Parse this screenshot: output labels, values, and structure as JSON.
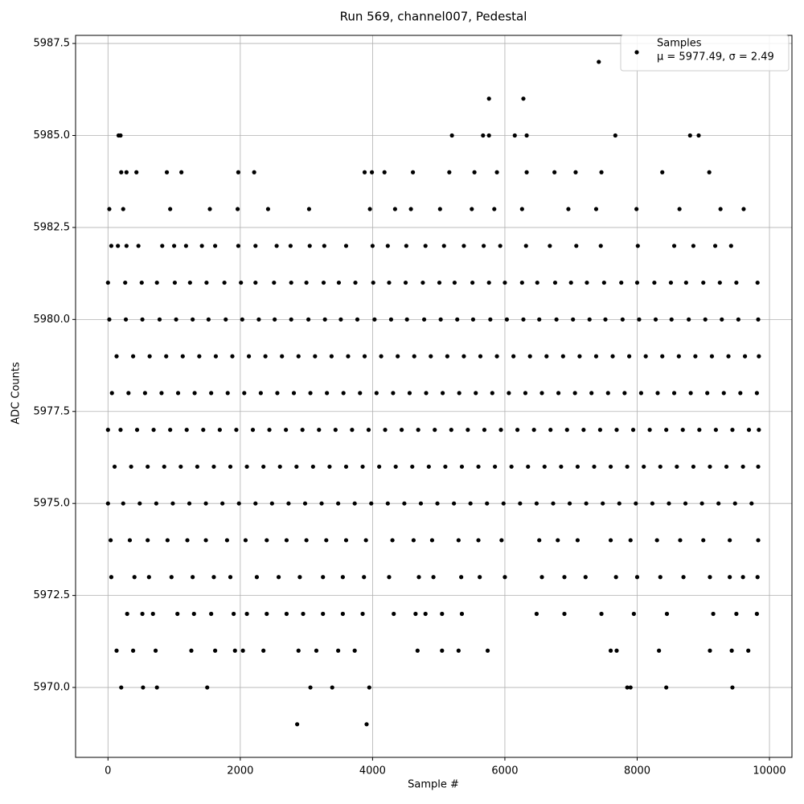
{
  "chart_data": {
    "type": "scatter",
    "title": "Run 569, channel007, Pedestal",
    "x_label": "Sample #",
    "y_label": "ADC Counts",
    "xlim": [
      -490,
      10340
    ],
    "xticks": [
      0,
      2000,
      4000,
      6000,
      8000,
      10000
    ],
    "ylim": [
      5968.1,
      5987.72
    ],
    "yticks": [
      {
        "value": 5970,
        "label": "5970.0"
      },
      {
        "value": 5972.5,
        "label": "5972.5"
      },
      {
        "value": 5975,
        "label": "5975.0"
      },
      {
        "value": 5977.5,
        "label": "5977.5"
      },
      {
        "value": 5980,
        "label": "5980.0"
      },
      {
        "value": 5982.5,
        "label": "5982.5"
      },
      {
        "value": 5985,
        "label": "5985.0"
      },
      {
        "value": 5987.5,
        "label": "5987.5"
      }
    ],
    "grid": true,
    "legend": "upper right",
    "stats_label": "μ = 5977.49, σ = 2.49",
    "series": [
      {
        "name": "Samples",
        "color": "#000000",
        "x": [
          7420,
          5760,
          6280,
          160,
          190,
          5200,
          5670,
          5760,
          6150,
          6330,
          7670,
          8800,
          8930,
          200,
          280,
          430,
          890,
          1110,
          1970,
          2210,
          3880,
          3990,
          4180,
          4610,
          5160,
          5540,
          5880,
          6330,
          6750,
          7070,
          7460,
          8380,
          9090,
          20,
          230,
          940,
          1540,
          1960,
          2420,
          3040,
          3960,
          4340,
          4580,
          5020,
          5500,
          5840,
          6260,
          6960,
          7380,
          7990,
          8640,
          9260,
          9610,
          50,
          150,
          280,
          460,
          820,
          1000,
          1180,
          1420,
          1620,
          1970,
          2230,
          2550,
          2760,
          3050,
          3270,
          3600,
          4000,
          4230,
          4510,
          4800,
          5080,
          5380,
          5680,
          5930,
          6320,
          6680,
          7080,
          7450,
          8010,
          8560,
          8850,
          9180,
          9420,
          0,
          260,
          510,
          740,
          1010,
          1240,
          1490,
          1760,
          2010,
          2230,
          2510,
          2770,
          3000,
          3260,
          3490,
          3740,
          4010,
          4250,
          4500,
          4760,
          5010,
          5240,
          5510,
          5760,
          6000,
          6260,
          6490,
          6760,
          7000,
          7240,
          7500,
          7760,
          8000,
          8260,
          8510,
          8740,
          9000,
          9250,
          9500,
          9820,
          20,
          270,
          520,
          780,
          1030,
          1280,
          1520,
          1780,
          2030,
          2280,
          2520,
          2770,
          3030,
          3280,
          3520,
          3770,
          4030,
          4280,
          4520,
          4780,
          5030,
          5280,
          5520,
          5780,
          6030,
          6280,
          6520,
          6780,
          7030,
          7280,
          7520,
          7780,
          8030,
          8280,
          8520,
          8780,
          9030,
          9280,
          9530,
          9830,
          130,
          380,
          630,
          880,
          1130,
          1380,
          1630,
          1880,
          2130,
          2380,
          2630,
          2880,
          3130,
          3380,
          3630,
          3880,
          4130,
          4380,
          4630,
          4880,
          5130,
          5380,
          5630,
          5880,
          6130,
          6380,
          6630,
          6880,
          7130,
          7380,
          7630,
          7880,
          8130,
          8380,
          8630,
          8880,
          9130,
          9380,
          9630,
          9840,
          60,
          310,
          560,
          810,
          1060,
          1310,
          1560,
          1810,
          2060,
          2310,
          2560,
          2810,
          3060,
          3310,
          3560,
          3810,
          4060,
          4310,
          4560,
          4810,
          5060,
          5310,
          5560,
          5810,
          6060,
          6310,
          6560,
          6810,
          7060,
          7310,
          7560,
          7810,
          8060,
          8310,
          8560,
          8810,
          9060,
          9310,
          9560,
          9810,
          0,
          190,
          440,
          690,
          940,
          1190,
          1440,
          1690,
          1940,
          2190,
          2440,
          2690,
          2940,
          3190,
          3440,
          3690,
          3940,
          4190,
          4440,
          4690,
          4940,
          5190,
          5440,
          5690,
          5940,
          6190,
          6440,
          6690,
          6940,
          7190,
          7440,
          7690,
          7940,
          8190,
          8440,
          8690,
          8940,
          9190,
          9440,
          9690,
          9840,
          100,
          350,
          600,
          850,
          1100,
          1350,
          1600,
          1850,
          2100,
          2350,
          2600,
          2850,
          3100,
          3350,
          3600,
          3850,
          4100,
          4350,
          4600,
          4850,
          5100,
          5350,
          5600,
          5850,
          6100,
          6350,
          6600,
          6850,
          7100,
          7350,
          7600,
          7850,
          8100,
          8350,
          8600,
          8850,
          9100,
          9350,
          9600,
          9830,
          0,
          230,
          480,
          730,
          980,
          1230,
          1480,
          1730,
          1980,
          2230,
          2480,
          2730,
          2980,
          3230,
          3480,
          3730,
          3980,
          4230,
          4480,
          4730,
          4980,
          5230,
          5480,
          5730,
          5980,
          6230,
          6480,
          6730,
          6980,
          7230,
          7480,
          7730,
          7980,
          8230,
          8480,
          8730,
          8980,
          9230,
          9480,
          9730,
          40,
          330,
          600,
          900,
          1200,
          1480,
          1800,
          2080,
          2400,
          2700,
          3000,
          3300,
          3600,
          3900,
          4300,
          4620,
          4900,
          5300,
          5600,
          5950,
          6520,
          6800,
          7100,
          7600,
          7900,
          8300,
          8650,
          9000,
          9400,
          9830,
          50,
          400,
          620,
          960,
          1280,
          1600,
          1850,
          2250,
          2580,
          2900,
          3250,
          3550,
          3870,
          4250,
          4700,
          4920,
          5340,
          5620,
          6000,
          6560,
          6900,
          7220,
          7680,
          8000,
          8350,
          8700,
          9100,
          9400,
          9600,
          9820,
          290,
          520,
          680,
          1050,
          1300,
          1560,
          1900,
          2100,
          2400,
          2700,
          2950,
          3250,
          3550,
          3850,
          4320,
          4650,
          4800,
          5050,
          5350,
          6480,
          6900,
          7460,
          7950,
          8450,
          9150,
          9500,
          9810,
          130,
          380,
          720,
          1260,
          1620,
          1920,
          2040,
          2350,
          2880,
          3150,
          3480,
          3730,
          4680,
          5050,
          5300,
          5740,
          7600,
          7690,
          8330,
          9100,
          9430,
          9680,
          200,
          530,
          740,
          1500,
          3060,
          3390,
          3950,
          7850,
          7900,
          8440,
          9440,
          2860,
          3910
        ],
        "values": [
          5987,
          5986,
          5986,
          5985,
          5985,
          5985,
          5985,
          5985,
          5985,
          5985,
          5985,
          5985,
          5985,
          5984,
          5984,
          5984,
          5984,
          5984,
          5984,
          5984,
          5984,
          5984,
          5984,
          5984,
          5984,
          5984,
          5984,
          5984,
          5984,
          5984,
          5984,
          5984,
          5984,
          5983,
          5983,
          5983,
          5983,
          5983,
          5983,
          5983,
          5983,
          5983,
          5983,
          5983,
          5983,
          5983,
          5983,
          5983,
          5983,
          5983,
          5983,
          5983,
          5983,
          5982,
          5982,
          5982,
          5982,
          5982,
          5982,
          5982,
          5982,
          5982,
          5982,
          5982,
          5982,
          5982,
          5982,
          5982,
          5982,
          5982,
          5982,
          5982,
          5982,
          5982,
          5982,
          5982,
          5982,
          5982,
          5982,
          5982,
          5982,
          5982,
          5982,
          5982,
          5982,
          5982,
          5981,
          5981,
          5981,
          5981,
          5981,
          5981,
          5981,
          5981,
          5981,
          5981,
          5981,
          5981,
          5981,
          5981,
          5981,
          5981,
          5981,
          5981,
          5981,
          5981,
          5981,
          5981,
          5981,
          5981,
          5981,
          5981,
          5981,
          5981,
          5981,
          5981,
          5981,
          5981,
          5981,
          5981,
          5981,
          5981,
          5981,
          5981,
          5981,
          5981,
          5980,
          5980,
          5980,
          5980,
          5980,
          5980,
          5980,
          5980,
          5980,
          5980,
          5980,
          5980,
          5980,
          5980,
          5980,
          5980,
          5980,
          5980,
          5980,
          5980,
          5980,
          5980,
          5980,
          5980,
          5980,
          5980,
          5980,
          5980,
          5980,
          5980,
          5980,
          5980,
          5980,
          5980,
          5980,
          5980,
          5980,
          5980,
          5980,
          5980,
          5979,
          5979,
          5979,
          5979,
          5979,
          5979,
          5979,
          5979,
          5979,
          5979,
          5979,
          5979,
          5979,
          5979,
          5979,
          5979,
          5979,
          5979,
          5979,
          5979,
          5979,
          5979,
          5979,
          5979,
          5979,
          5979,
          5979,
          5979,
          5979,
          5979,
          5979,
          5979,
          5979,
          5979,
          5979,
          5979,
          5979,
          5979,
          5979,
          5979,
          5978,
          5978,
          5978,
          5978,
          5978,
          5978,
          5978,
          5978,
          5978,
          5978,
          5978,
          5978,
          5978,
          5978,
          5978,
          5978,
          5978,
          5978,
          5978,
          5978,
          5978,
          5978,
          5978,
          5978,
          5978,
          5978,
          5978,
          5978,
          5978,
          5978,
          5978,
          5978,
          5978,
          5978,
          5978,
          5978,
          5978,
          5978,
          5978,
          5978,
          5977,
          5977,
          5977,
          5977,
          5977,
          5977,
          5977,
          5977,
          5977,
          5977,
          5977,
          5977,
          5977,
          5977,
          5977,
          5977,
          5977,
          5977,
          5977,
          5977,
          5977,
          5977,
          5977,
          5977,
          5977,
          5977,
          5977,
          5977,
          5977,
          5977,
          5977,
          5977,
          5977,
          5977,
          5977,
          5977,
          5977,
          5977,
          5977,
          5977,
          5977,
          5976,
          5976,
          5976,
          5976,
          5976,
          5976,
          5976,
          5976,
          5976,
          5976,
          5976,
          5976,
          5976,
          5976,
          5976,
          5976,
          5976,
          5976,
          5976,
          5976,
          5976,
          5976,
          5976,
          5976,
          5976,
          5976,
          5976,
          5976,
          5976,
          5976,
          5976,
          5976,
          5976,
          5976,
          5976,
          5976,
          5976,
          5976,
          5976,
          5976,
          5975,
          5975,
          5975,
          5975,
          5975,
          5975,
          5975,
          5975,
          5975,
          5975,
          5975,
          5975,
          5975,
          5975,
          5975,
          5975,
          5975,
          5975,
          5975,
          5975,
          5975,
          5975,
          5975,
          5975,
          5975,
          5975,
          5975,
          5975,
          5975,
          5975,
          5975,
          5975,
          5975,
          5975,
          5975,
          5975,
          5975,
          5975,
          5975,
          5975,
          5974,
          5974,
          5974,
          5974,
          5974,
          5974,
          5974,
          5974,
          5974,
          5974,
          5974,
          5974,
          5974,
          5974,
          5974,
          5974,
          5974,
          5974,
          5974,
          5974,
          5974,
          5974,
          5974,
          5974,
          5974,
          5974,
          5974,
          5974,
          5974,
          5974,
          5973,
          5973,
          5973,
          5973,
          5973,
          5973,
          5973,
          5973,
          5973,
          5973,
          5973,
          5973,
          5973,
          5973,
          5973,
          5973,
          5973,
          5973,
          5973,
          5973,
          5973,
          5973,
          5973,
          5973,
          5973,
          5973,
          5973,
          5973,
          5973,
          5973,
          5972,
          5972,
          5972,
          5972,
          5972,
          5972,
          5972,
          5972,
          5972,
          5972,
          5972,
          5972,
          5972,
          5972,
          5972,
          5972,
          5972,
          5972,
          5972,
          5972,
          5972,
          5972,
          5972,
          5972,
          5972,
          5972,
          5972,
          5971,
          5971,
          5971,
          5971,
          5971,
          5971,
          5971,
          5971,
          5971,
          5971,
          5971,
          5971,
          5971,
          5971,
          5971,
          5971,
          5971,
          5971,
          5971,
          5971,
          5971,
          5971,
          5970,
          5970,
          5970,
          5970,
          5970,
          5970,
          5970,
          5970,
          5970,
          5970,
          5970,
          5969,
          5969
        ]
      }
    ]
  }
}
